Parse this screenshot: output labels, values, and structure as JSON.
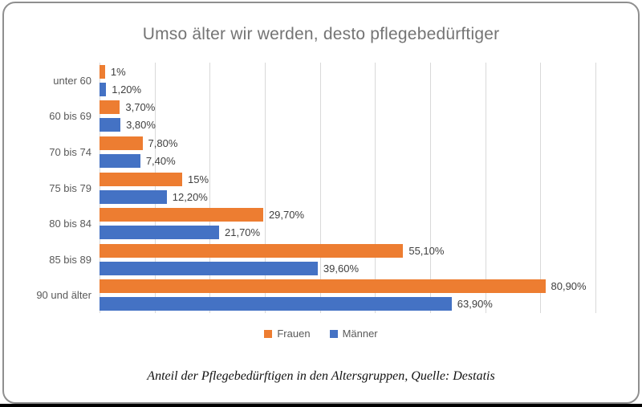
{
  "title": "Umso älter wir werden, desto pflegebedürftiger",
  "caption": "Anteil der Pflegebedürftigen in den Altersgruppen, Quelle: Destatis",
  "legend": [
    {
      "label": "Frauen",
      "color": "#ED7D31"
    },
    {
      "label": "Männer",
      "color": "#4472C4"
    }
  ],
  "colors": {
    "frauen": "#ED7D31",
    "maenner": "#4472C4",
    "gridline": "#d9d9d9",
    "title_text": "#747474",
    "axis_text": "#595959",
    "value_text": "#3f3f3f",
    "card_border": "#8f8f8f",
    "bottom_strip": "#000000"
  },
  "chart_data": {
    "type": "bar",
    "orientation": "horizontal",
    "title": "Umso älter wir werden, desto pflegebedürftiger",
    "categories": [
      "unter 60",
      "60 bis 69",
      "70 bis 74",
      "75 bis 79",
      "80 bis 84",
      "85 bis 89",
      "90 und älter"
    ],
    "series": [
      {
        "name": "Frauen",
        "color": "#ED7D31",
        "values": [
          1,
          3.7,
          7.8,
          15,
          29.7,
          55.1,
          80.9
        ],
        "labels": [
          "1%",
          "3,70%",
          "7,80%",
          "15%",
          "29,70%",
          "55,10%",
          "80,90%"
        ]
      },
      {
        "name": "Männer",
        "color": "#4472C4",
        "values": [
          1.2,
          3.8,
          7.4,
          12.2,
          21.7,
          39.6,
          63.9
        ],
        "labels": [
          "1,20%",
          "3,80%",
          "7,40%",
          "12,20%",
          "21,70%",
          "39,60%",
          "63,90%"
        ]
      }
    ],
    "xlabel": "",
    "ylabel": "",
    "xlim": [
      0,
      90
    ],
    "gridline_step": 10,
    "grid": true,
    "legend_position": "bottom",
    "value_labels": "outside-end"
  }
}
